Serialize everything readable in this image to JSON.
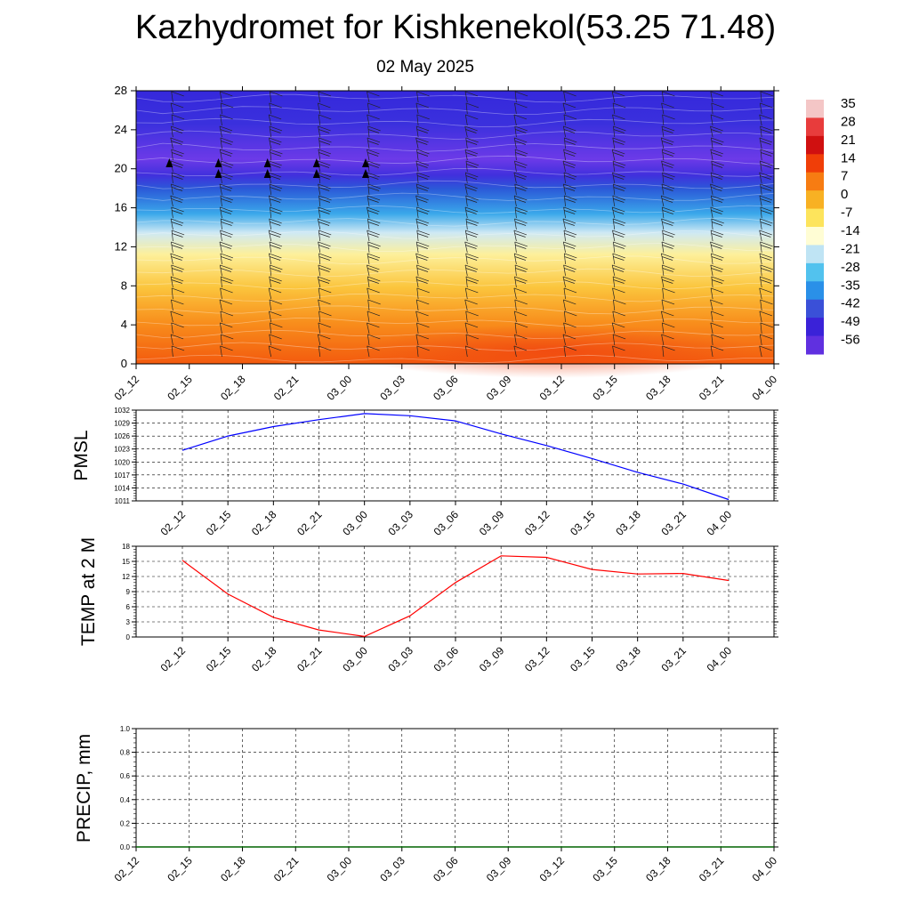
{
  "header": {
    "title": "Kazhydromet for Kishkenekol(53.25 71.48)",
    "date": "02 May 2025"
  },
  "chart_data": [
    {
      "type": "heatmap",
      "name": "temperature-cross-section",
      "x": [
        "02_12",
        "02_15",
        "02_18",
        "02_21",
        "03_00",
        "03_03",
        "03_06",
        "03_09",
        "03_12",
        "03_15",
        "03_18",
        "03_21",
        "04_00"
      ],
      "ylim": [
        0,
        28
      ],
      "yticks": [
        0,
        4,
        8,
        12,
        16,
        20,
        24,
        28
      ],
      "colorbar_labels": [
        "35",
        "28",
        "21",
        "14",
        "7",
        "0",
        "-7",
        "-14",
        "-21",
        "-28",
        "-35",
        "-42",
        "-49",
        "-56"
      ],
      "colorbar_values": [
        35,
        28,
        21,
        14,
        7,
        0,
        -7,
        -14,
        -21,
        -28,
        -35,
        -42,
        -49,
        -56
      ],
      "colorbar_colors": [
        "#f4c6c6",
        "#e83c3c",
        "#d01010",
        "#f03e08",
        "#f77c12",
        "#f8b123",
        "#fde45c",
        "#fffdd4",
        "#bfe4f4",
        "#52c2ee",
        "#2a90e8",
        "#3a50d8",
        "#3a22d8",
        "#6030e0"
      ]
    },
    {
      "type": "line",
      "name": "pmsl",
      "ylabel": "PMSL",
      "x": [
        "02_12",
        "02_15",
        "02_18",
        "02_21",
        "03_00",
        "03_03",
        "03_06",
        "03_09",
        "03_12",
        "03_15",
        "03_18",
        "03_21",
        "04_00"
      ],
      "yticks": [
        1011,
        1014,
        1017,
        1020,
        1023,
        1026,
        1029,
        1032
      ],
      "ylim": [
        1011,
        1032
      ],
      "series": [
        {
          "values": [
            1022.7,
            1026,
            1028.2,
            1029.8,
            1031.2,
            1030.7,
            1029.5,
            1026.5,
            1023.8,
            1020.8,
            1017.6,
            1014.9,
            1011.3
          ],
          "color": "#0000ff"
        }
      ]
    },
    {
      "type": "line",
      "name": "temp-2m",
      "ylabel": "TEMP at 2 M",
      "x": [
        "02_12",
        "02_15",
        "02_18",
        "02_21",
        "03_00",
        "03_03",
        "03_06",
        "03_09",
        "03_12",
        "03_15",
        "03_18",
        "03_21",
        "04_00"
      ],
      "yticks": [
        0,
        3,
        6,
        9,
        12,
        15,
        18
      ],
      "ylim": [
        0,
        18
      ],
      "series": [
        {
          "values": [
            15.2,
            8.5,
            3.9,
            1.4,
            0.1,
            4.2,
            10.8,
            16.1,
            15.8,
            13.4,
            12.5,
            12.6,
            11.2
          ],
          "color": "#ff0000"
        }
      ]
    },
    {
      "type": "line",
      "name": "precip",
      "ylabel": "PRECIP, mm",
      "x": [
        "02_12",
        "02_15",
        "02_18",
        "02_21",
        "03_00",
        "03_03",
        "03_06",
        "03_09",
        "03_12",
        "03_15",
        "03_18",
        "03_21",
        "04_00"
      ],
      "yticks": [
        "0.0",
        "0.2",
        "0.4",
        "0.6",
        "0.8",
        "1.0"
      ],
      "ylim": [
        0,
        1
      ],
      "series": [
        {
          "values": [
            0,
            0,
            0,
            0,
            0,
            0,
            0,
            0,
            0,
            0,
            0,
            0,
            0
          ],
          "color": "#006400"
        }
      ]
    }
  ]
}
